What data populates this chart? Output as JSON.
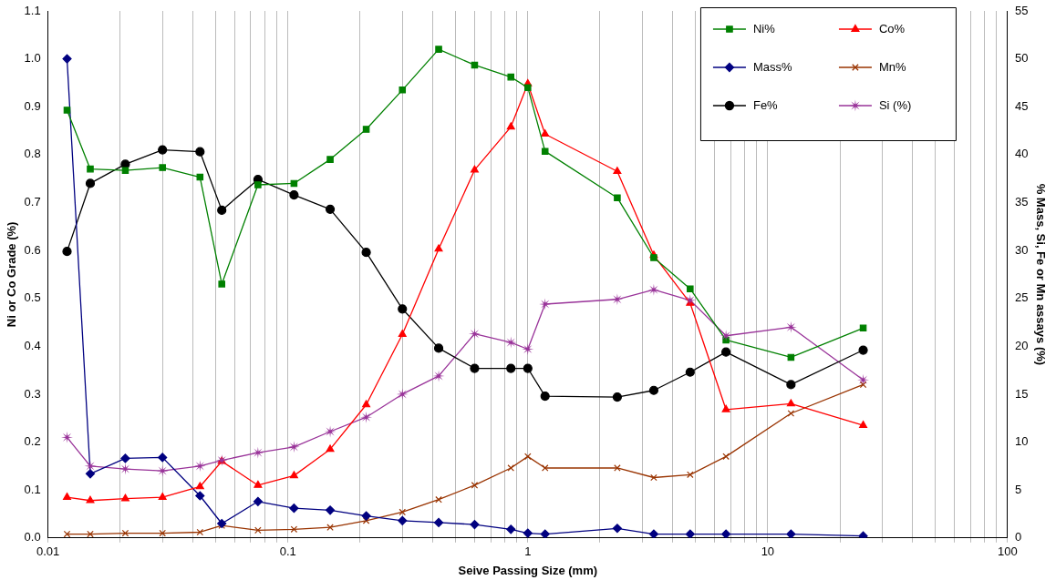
{
  "chart_data": {
    "type": "line",
    "xlabel": "Seive Passing Size (mm)",
    "ylabel": "Ni or Co Grade (%)",
    "y2label": "% Mass, Si, Fe or Mn assays (%)",
    "log": "x",
    "grid": "x",
    "legend": "top right",
    "line_style": "solid",
    "x": [
      0.012,
      0.015,
      0.021,
      0.03,
      0.043,
      0.053,
      0.075,
      0.106,
      0.15,
      0.212,
      0.3,
      0.425,
      0.6,
      0.85,
      1.0,
      1.18,
      2.36,
      3.35,
      4.75,
      6.7,
      12.5,
      25
    ],
    "xlim": [
      0.01,
      100
    ],
    "xticks": [
      {
        "value": 0.01,
        "label": "0.01"
      },
      {
        "value": 0.02,
        "label": null
      },
      {
        "value": 0.03,
        "label": null
      },
      {
        "value": 0.04,
        "label": null
      },
      {
        "value": 0.05,
        "label": null
      },
      {
        "value": 0.06,
        "label": null
      },
      {
        "value": 0.07,
        "label": null
      },
      {
        "value": 0.08,
        "label": null
      },
      {
        "value": 0.09,
        "label": null
      },
      {
        "value": 0.1,
        "label": "0.1"
      },
      {
        "value": 0.2,
        "label": null
      },
      {
        "value": 0.3,
        "label": null
      },
      {
        "value": 0.4,
        "label": null
      },
      {
        "value": 0.5,
        "label": null
      },
      {
        "value": 0.6,
        "label": null
      },
      {
        "value": 0.7,
        "label": null
      },
      {
        "value": 0.8,
        "label": null
      },
      {
        "value": 0.9,
        "label": null
      },
      1,
      {
        "value": 2,
        "label": null
      },
      {
        "value": 3,
        "label": null
      },
      {
        "value": 4,
        "label": null
      },
      {
        "value": 5,
        "label": null
      },
      {
        "value": 6,
        "label": null
      },
      {
        "value": 7,
        "label": null
      },
      {
        "value": 8,
        "label": null
      },
      {
        "value": 9,
        "label": null
      },
      10,
      {
        "value": 20,
        "label": null
      },
      {
        "value": 30,
        "label": null
      },
      {
        "value": 40,
        "label": null
      },
      {
        "value": 50,
        "label": null
      },
      {
        "value": 60,
        "label": null
      },
      {
        "value": 70,
        "label": null
      },
      {
        "value": 80,
        "label": null
      },
      {
        "value": 90,
        "label": null
      },
      100
    ],
    "ylim": [
      0,
      1.1
    ],
    "yticks": [
      {
        "value": 0,
        "label": "0.0"
      },
      0.1,
      0.2,
      0.3,
      0.4,
      0.5,
      0.6,
      0.7,
      0.8,
      0.9,
      {
        "value": 1,
        "label": "1.0"
      },
      1.1
    ],
    "y2lim": [
      0,
      55
    ],
    "y2ticks": [
      0,
      5,
      10,
      15,
      20,
      25,
      30,
      35,
      40,
      45,
      50,
      55
    ],
    "series": [
      {
        "name": "Ni%",
        "color": "#008000",
        "marker": "square",
        "values": [
          0.893,
          0.77,
          0.767,
          0.773,
          0.753,
          0.53,
          0.737,
          0.74,
          0.79,
          0.853,
          0.935,
          1.02,
          0.987,
          0.962,
          0.94,
          0.807,
          0.71,
          0.585,
          0.52,
          0.413,
          0.377,
          0.438
        ]
      },
      {
        "name": "Co%",
        "color": "#ff0000",
        "marker": "triangle",
        "values": [
          0.085,
          0.078,
          0.082,
          0.085,
          0.107,
          0.16,
          0.11,
          0.13,
          0.185,
          0.278,
          0.425,
          0.603,
          0.768,
          0.858,
          0.948,
          0.843,
          0.765,
          0.59,
          0.49,
          0.268,
          0.28,
          0.235
        ]
      },
      {
        "name": "Mass%",
        "color": "#000080",
        "marker": "diamond",
        "axis": "y2",
        "values": [
          50,
          6.7,
          8.3,
          8.4,
          4.4,
          1.5,
          3.8,
          3.1,
          2.9,
          2.3,
          1.8,
          1.6,
          1.4,
          0.9,
          0.5,
          0.4,
          1.0,
          0.4,
          0.4,
          0.4,
          0.4,
          0.2
        ]
      },
      {
        "name": "Mn%",
        "color": "#993300",
        "marker": "cross",
        "axis": "y2",
        "values": [
          0.4,
          0.4,
          0.5,
          0.5,
          0.6,
          1.3,
          0.8,
          0.9,
          1.1,
          1.8,
          2.7,
          4.0,
          5.5,
          7.3,
          8.5,
          7.3,
          7.3,
          6.3,
          6.6,
          8.5,
          13.0,
          16.0
        ]
      },
      {
        "name": "Fe%",
        "color": "#000000",
        "marker": "circle",
        "axis": "y2",
        "values": [
          29.9,
          37.0,
          39.0,
          40.5,
          40.3,
          34.2,
          37.4,
          35.8,
          34.3,
          29.8,
          23.9,
          19.8,
          17.7,
          17.7,
          17.7,
          14.8,
          14.7,
          15.4,
          17.3,
          19.4,
          16.0,
          19.6
        ]
      },
      {
        "name": "Si (%)",
        "color": "#993399",
        "marker": "star",
        "axis": "y2",
        "values": [
          10.5,
          7.5,
          7.2,
          7.0,
          7.5,
          8.1,
          8.9,
          9.5,
          11.1,
          12.6,
          15.0,
          16.9,
          21.3,
          20.4,
          19.7,
          24.4,
          24.9,
          25.9,
          24.8,
          21.1,
          22.0,
          16.5
        ]
      }
    ]
  }
}
